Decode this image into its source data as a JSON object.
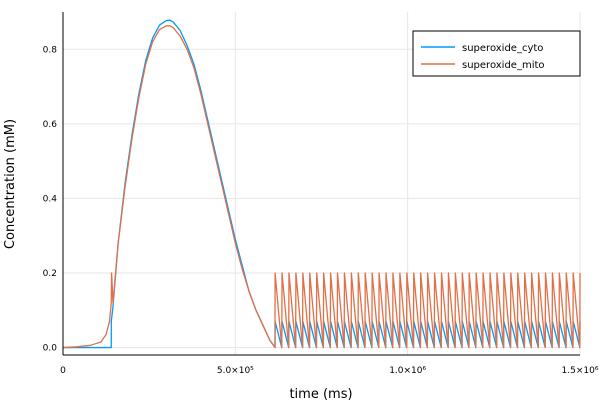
{
  "chart_data": {
    "type": "line",
    "xlabel": "time (ms)",
    "ylabel": "Concentration (mM)",
    "xlim": [
      0,
      1500000
    ],
    "ylim": [
      -0.02,
      0.9
    ],
    "x_ticks": [
      {
        "value": 0,
        "label": "0"
      },
      {
        "value": 500000,
        "label": "5.0×10⁵"
      },
      {
        "value": 1000000,
        "label": "1.0×10⁶"
      },
      {
        "value": 1500000,
        "label": "1.5×10⁶"
      }
    ],
    "y_ticks": [
      {
        "value": 0.0,
        "label": "0.0"
      },
      {
        "value": 0.2,
        "label": "0.2"
      },
      {
        "value": 0.4,
        "label": "0.4"
      },
      {
        "value": 0.6,
        "label": "0.6"
      },
      {
        "value": 0.8,
        "label": "0.8"
      }
    ],
    "grid": true,
    "legend": {
      "position": "top-right",
      "entries": [
        {
          "name": "superoxide_cyto",
          "color": "#009af9"
        },
        {
          "name": "superoxide_mito",
          "color": "#e26f46"
        }
      ]
    },
    "series": [
      {
        "name": "superoxide_cyto",
        "color": "#009af9",
        "x": [
          0,
          140000,
          140100,
          145000,
          160000,
          180000,
          200000,
          220000,
          240000,
          260000,
          280000,
          300000,
          310000,
          320000,
          340000,
          360000,
          380000,
          400000,
          420000,
          440000,
          460000,
          480000,
          500000,
          520000,
          540000,
          560000,
          580000,
          600000,
          615000
        ],
        "y": [
          0,
          0,
          0.07,
          0.11,
          0.28,
          0.44,
          0.57,
          0.68,
          0.77,
          0.83,
          0.865,
          0.877,
          0.878,
          0.873,
          0.85,
          0.81,
          0.76,
          0.69,
          0.61,
          0.53,
          0.45,
          0.37,
          0.29,
          0.22,
          0.15,
          0.1,
          0.06,
          0.02,
          0
        ],
        "oscillation": {
          "start": 615000,
          "end": 1500000,
          "cycles": 44,
          "peak": 0.07,
          "trough": 0.0
        }
      },
      {
        "name": "superoxide_mito",
        "color": "#e26f46",
        "x": [
          0,
          40000,
          80000,
          110000,
          125000,
          135000,
          140000,
          141000,
          145000,
          160000,
          180000,
          200000,
          220000,
          240000,
          260000,
          280000,
          300000,
          310000,
          320000,
          340000,
          360000,
          380000,
          400000,
          420000,
          440000,
          460000,
          480000,
          500000,
          520000,
          540000,
          560000,
          580000,
          600000,
          615000
        ],
        "y": [
          0,
          0.002,
          0.006,
          0.015,
          0.035,
          0.07,
          0.12,
          0.2,
          0.12,
          0.28,
          0.43,
          0.56,
          0.67,
          0.76,
          0.82,
          0.853,
          0.863,
          0.863,
          0.858,
          0.835,
          0.8,
          0.75,
          0.68,
          0.6,
          0.52,
          0.44,
          0.36,
          0.28,
          0.21,
          0.15,
          0.1,
          0.06,
          0.02,
          0
        ],
        "oscillation": {
          "start": 615000,
          "end": 1500000,
          "cycles": 44,
          "peak": 0.2,
          "trough": 0.0
        }
      }
    ]
  }
}
